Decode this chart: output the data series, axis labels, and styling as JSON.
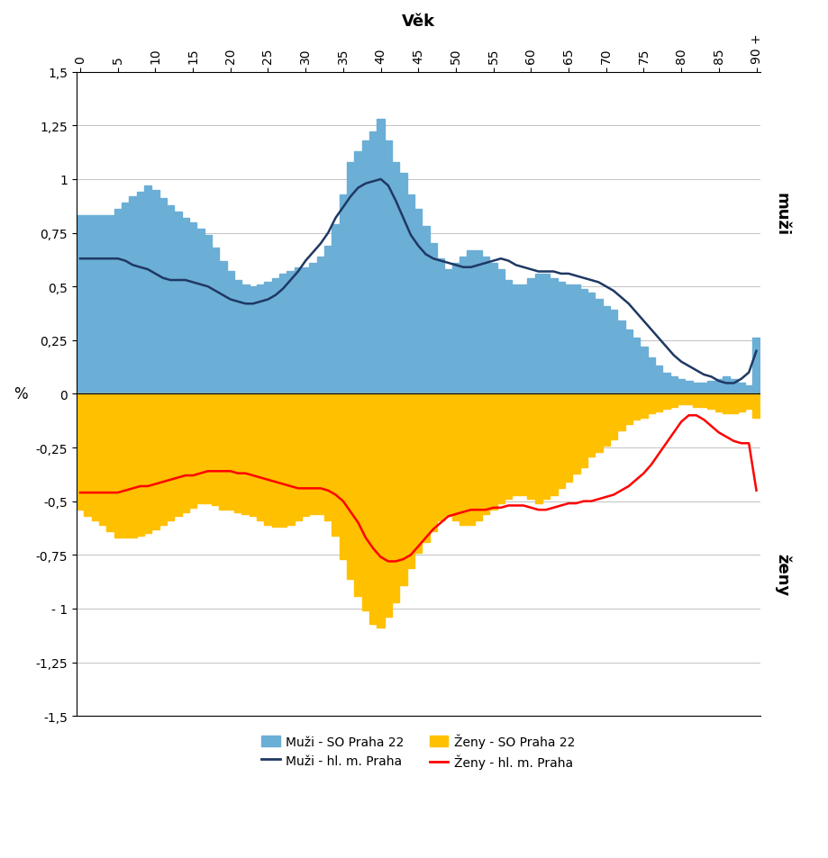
{
  "title_top": "Věk",
  "ylabel": "%",
  "muzi_label": "muži",
  "zeny_label": "ženy",
  "ages": [
    0,
    1,
    2,
    3,
    4,
    5,
    6,
    7,
    8,
    9,
    10,
    11,
    12,
    13,
    14,
    15,
    16,
    17,
    18,
    19,
    20,
    21,
    22,
    23,
    24,
    25,
    26,
    27,
    28,
    29,
    30,
    31,
    32,
    33,
    34,
    35,
    36,
    37,
    38,
    39,
    40,
    41,
    42,
    43,
    44,
    45,
    46,
    47,
    48,
    49,
    50,
    51,
    52,
    53,
    54,
    55,
    56,
    57,
    58,
    59,
    60,
    61,
    62,
    63,
    64,
    65,
    66,
    67,
    68,
    69,
    70,
    71,
    72,
    73,
    74,
    75,
    76,
    77,
    78,
    79,
    80,
    81,
    82,
    83,
    84,
    85,
    86,
    87,
    88,
    89,
    90
  ],
  "muzi_so": [
    0.83,
    0.83,
    0.83,
    0.83,
    0.83,
    0.86,
    0.89,
    0.92,
    0.94,
    0.97,
    0.95,
    0.91,
    0.88,
    0.85,
    0.82,
    0.8,
    0.77,
    0.74,
    0.68,
    0.62,
    0.57,
    0.53,
    0.51,
    0.5,
    0.51,
    0.52,
    0.54,
    0.56,
    0.57,
    0.59,
    0.59,
    0.61,
    0.64,
    0.69,
    0.79,
    0.93,
    1.08,
    1.13,
    1.18,
    1.22,
    1.28,
    1.18,
    1.08,
    1.03,
    0.93,
    0.86,
    0.78,
    0.7,
    0.63,
    0.58,
    0.61,
    0.64,
    0.67,
    0.67,
    0.64,
    0.61,
    0.58,
    0.53,
    0.51,
    0.51,
    0.54,
    0.56,
    0.56,
    0.54,
    0.52,
    0.51,
    0.51,
    0.49,
    0.47,
    0.44,
    0.41,
    0.39,
    0.34,
    0.3,
    0.26,
    0.22,
    0.17,
    0.13,
    0.1,
    0.08,
    0.07,
    0.06,
    0.05,
    0.05,
    0.06,
    0.07,
    0.08,
    0.07,
    0.05,
    0.04,
    0.26
  ],
  "zeny_so": [
    -0.54,
    -0.57,
    -0.59,
    -0.61,
    -0.64,
    -0.67,
    -0.67,
    -0.67,
    -0.66,
    -0.65,
    -0.63,
    -0.61,
    -0.59,
    -0.57,
    -0.55,
    -0.53,
    -0.51,
    -0.51,
    -0.52,
    -0.54,
    -0.54,
    -0.55,
    -0.56,
    -0.57,
    -0.59,
    -0.61,
    -0.62,
    -0.62,
    -0.61,
    -0.59,
    -0.57,
    -0.56,
    -0.56,
    -0.59,
    -0.66,
    -0.77,
    -0.86,
    -0.94,
    -1.01,
    -1.07,
    -1.09,
    -1.04,
    -0.97,
    -0.89,
    -0.81,
    -0.74,
    -0.69,
    -0.64,
    -0.59,
    -0.57,
    -0.59,
    -0.61,
    -0.61,
    -0.59,
    -0.56,
    -0.54,
    -0.51,
    -0.49,
    -0.47,
    -0.47,
    -0.49,
    -0.51,
    -0.49,
    -0.47,
    -0.44,
    -0.41,
    -0.37,
    -0.34,
    -0.29,
    -0.27,
    -0.24,
    -0.21,
    -0.17,
    -0.14,
    -0.12,
    -0.11,
    -0.09,
    -0.08,
    -0.07,
    -0.06,
    -0.05,
    -0.05,
    -0.06,
    -0.06,
    -0.07,
    -0.08,
    -0.09,
    -0.09,
    -0.08,
    -0.07,
    -0.11
  ],
  "muzi_praha": [
    0.63,
    0.63,
    0.63,
    0.63,
    0.63,
    0.63,
    0.62,
    0.6,
    0.59,
    0.58,
    0.56,
    0.54,
    0.53,
    0.53,
    0.53,
    0.52,
    0.51,
    0.5,
    0.48,
    0.46,
    0.44,
    0.43,
    0.42,
    0.42,
    0.43,
    0.44,
    0.46,
    0.49,
    0.53,
    0.57,
    0.62,
    0.66,
    0.7,
    0.75,
    0.82,
    0.87,
    0.92,
    0.96,
    0.98,
    0.99,
    1.0,
    0.97,
    0.9,
    0.82,
    0.74,
    0.69,
    0.65,
    0.63,
    0.62,
    0.61,
    0.6,
    0.59,
    0.59,
    0.6,
    0.61,
    0.62,
    0.63,
    0.62,
    0.6,
    0.59,
    0.58,
    0.57,
    0.57,
    0.57,
    0.56,
    0.56,
    0.55,
    0.54,
    0.53,
    0.52,
    0.5,
    0.48,
    0.45,
    0.42,
    0.38,
    0.34,
    0.3,
    0.26,
    0.22,
    0.18,
    0.15,
    0.13,
    0.11,
    0.09,
    0.08,
    0.06,
    0.05,
    0.05,
    0.07,
    0.1,
    0.2
  ],
  "zeny_praha": [
    -0.46,
    -0.46,
    -0.46,
    -0.46,
    -0.46,
    -0.46,
    -0.45,
    -0.44,
    -0.43,
    -0.43,
    -0.42,
    -0.41,
    -0.4,
    -0.39,
    -0.38,
    -0.38,
    -0.37,
    -0.36,
    -0.36,
    -0.36,
    -0.36,
    -0.37,
    -0.37,
    -0.38,
    -0.39,
    -0.4,
    -0.41,
    -0.42,
    -0.43,
    -0.44,
    -0.44,
    -0.44,
    -0.44,
    -0.45,
    -0.47,
    -0.5,
    -0.55,
    -0.6,
    -0.67,
    -0.72,
    -0.76,
    -0.78,
    -0.78,
    -0.77,
    -0.75,
    -0.71,
    -0.67,
    -0.63,
    -0.6,
    -0.57,
    -0.56,
    -0.55,
    -0.54,
    -0.54,
    -0.54,
    -0.53,
    -0.53,
    -0.52,
    -0.52,
    -0.52,
    -0.53,
    -0.54,
    -0.54,
    -0.53,
    -0.52,
    -0.51,
    -0.51,
    -0.5,
    -0.5,
    -0.49,
    -0.48,
    -0.47,
    -0.45,
    -0.43,
    -0.4,
    -0.37,
    -0.33,
    -0.28,
    -0.23,
    -0.18,
    -0.13,
    -0.1,
    -0.1,
    -0.12,
    -0.15,
    -0.18,
    -0.2,
    -0.22,
    -0.23,
    -0.23,
    -0.45
  ],
  "ylim": [
    -1.5,
    1.5
  ],
  "yticks": [
    -1.5,
    -1.25,
    -1.0,
    -0.75,
    -0.5,
    -0.25,
    0,
    0.25,
    0.5,
    0.75,
    1.0,
    1.25,
    1.5
  ],
  "ytick_labels": [
    "-1,5",
    "-1,25",
    "- 1",
    "-0,75",
    "-0,5",
    "-0,25",
    "0",
    "0,25",
    "0,5",
    "0,75",
    "1",
    "1,25",
    "1,5"
  ],
  "xticks": [
    0,
    5,
    10,
    15,
    20,
    25,
    30,
    35,
    40,
    45,
    50,
    55,
    60,
    65,
    70,
    75,
    80,
    85,
    90
  ],
  "xtick_labels": [
    "0",
    "5",
    "10",
    "15",
    "20",
    "25",
    "30",
    "35",
    "40",
    "45",
    "50",
    "55",
    "60",
    "65",
    "70",
    "75",
    "80",
    "85",
    "90 +"
  ],
  "bar_color_muzi": "#6baed6",
  "bar_color_zeny": "#FFC000",
  "line_color_muzi": "#1F3864",
  "line_color_zeny": "#FF0000",
  "background_color": "#FFFFFF"
}
